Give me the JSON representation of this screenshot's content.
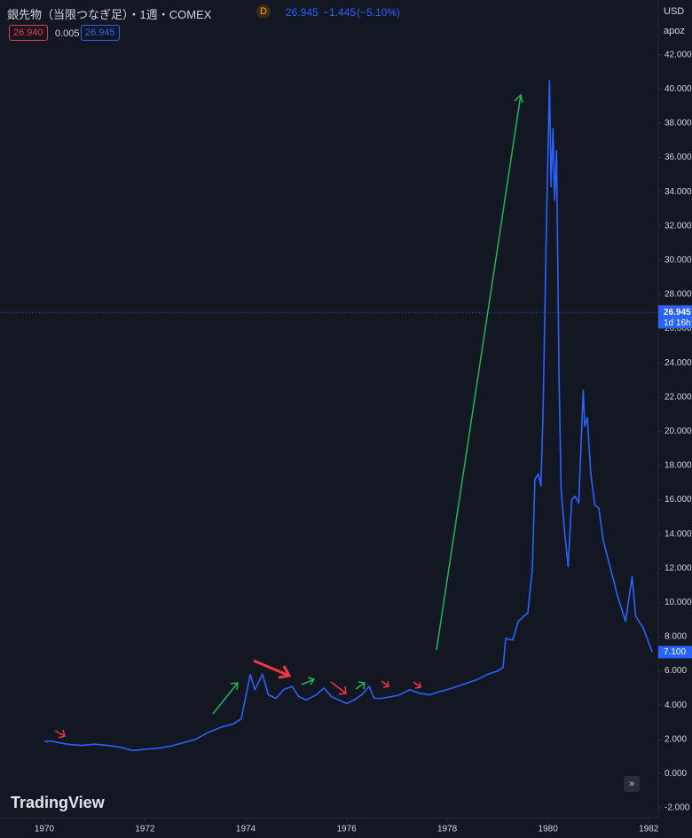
{
  "header": {
    "title": "銀先物（当限つなぎ足）・1週・COMEX",
    "badge": "D",
    "last": "26.945",
    "change": "−1.445",
    "change_pct": "(−5.10%)",
    "sell": "26.940",
    "spread": "0.005",
    "buy": "26.945",
    "currency": "USD",
    "menu": "apoz",
    "brand": "TradingView"
  },
  "price_scale": {
    "current": 26.945,
    "current_label": "26.945",
    "countdown": "1d 16h",
    "last_label": "7.100"
  },
  "chart_data": {
    "type": "line",
    "color": "#2962ff",
    "grid": false,
    "x": [
      1970.0,
      1970.15,
      1970.3,
      1970.5,
      1970.75,
      1971.0,
      1971.25,
      1971.5,
      1971.75,
      1972.0,
      1972.25,
      1972.5,
      1972.75,
      1973.0,
      1973.25,
      1973.5,
      1973.75,
      1973.91,
      1974.0,
      1974.09,
      1974.18,
      1974.33,
      1974.45,
      1974.6,
      1974.75,
      1974.92,
      1975.05,
      1975.2,
      1975.4,
      1975.55,
      1975.7,
      1975.85,
      1976.0,
      1976.15,
      1976.3,
      1976.45,
      1976.55,
      1976.7,
      1976.9,
      1977.05,
      1977.25,
      1977.45,
      1977.65,
      1977.85,
      1978.0,
      1978.2,
      1978.4,
      1978.6,
      1978.8,
      1979.0,
      1979.11,
      1979.16,
      1979.3,
      1979.41,
      1979.6,
      1979.69,
      1979.74,
      1979.81,
      1979.86,
      1979.9,
      1979.97,
      1980.03,
      1980.06,
      1980.1,
      1980.13,
      1980.17,
      1980.22,
      1980.26,
      1980.33,
      1980.4,
      1980.47,
      1980.54,
      1980.61,
      1980.7,
      1980.73,
      1980.78,
      1980.85,
      1980.93,
      1981.01,
      1981.1,
      1981.24,
      1981.37,
      1981.54,
      1981.67,
      1981.74,
      1981.89,
      1982.07
    ],
    "values": [
      1.87,
      1.9,
      1.8,
      1.7,
      1.65,
      1.72,
      1.65,
      1.55,
      1.35,
      1.42,
      1.48,
      1.6,
      1.8,
      2.0,
      2.4,
      2.7,
      2.9,
      3.2,
      4.5,
      5.8,
      4.9,
      5.8,
      4.6,
      4.4,
      4.9,
      5.1,
      4.5,
      4.3,
      4.6,
      5.0,
      4.5,
      4.3,
      4.1,
      4.3,
      4.6,
      5.1,
      4.4,
      4.4,
      4.5,
      4.6,
      4.9,
      4.7,
      4.6,
      4.8,
      4.9,
      5.1,
      5.3,
      5.5,
      5.8,
      6.0,
      6.2,
      7.9,
      7.8,
      8.9,
      9.4,
      12.0,
      17.2,
      17.5,
      16.8,
      20.8,
      32.2,
      40.5,
      34.3,
      37.7,
      33.5,
      36.4,
      23.0,
      16.7,
      14.1,
      12.1,
      16.0,
      16.2,
      15.8,
      22.4,
      20.3,
      20.8,
      17.5,
      15.7,
      15.5,
      13.6,
      12.0,
      10.5,
      8.9,
      11.5,
      9.2,
      8.5,
      7.1
    ],
    "xlim": [
      1969.12,
      1982.19
    ],
    "ylim": [
      -2.57,
      45.2
    ],
    "xticks": [
      1970,
      1972,
      1974,
      1976,
      1978,
      1980,
      1982
    ],
    "yticks": [
      {
        "value": -2,
        "label": "-2.000"
      },
      {
        "value": 0,
        "label": "0.000"
      },
      {
        "value": 2,
        "label": "2.000"
      },
      {
        "value": 4,
        "label": "4.000"
      },
      {
        "value": 6,
        "label": "6.000"
      },
      {
        "value": 8,
        "label": "8.000"
      },
      {
        "value": 10,
        "label": "10.000"
      },
      {
        "value": 12,
        "label": "12.000"
      },
      {
        "value": 14,
        "label": "14.000"
      },
      {
        "value": 16,
        "label": "16.000"
      },
      {
        "value": 18,
        "label": "18.000"
      },
      {
        "value": 20,
        "label": "20.000"
      },
      {
        "value": 22,
        "label": "22.000"
      },
      {
        "value": 24,
        "label": "24.000"
      },
      {
        "value": 26,
        "label": "26.000"
      },
      {
        "value": 28,
        "label": "28.000"
      },
      {
        "value": 30,
        "label": "30.000"
      },
      {
        "value": 32,
        "label": "32.000"
      },
      {
        "value": 34,
        "label": "34.000"
      },
      {
        "value": 36,
        "label": "36.000"
      },
      {
        "value": 38,
        "label": "38.000"
      },
      {
        "value": 40,
        "label": "40.000"
      },
      {
        "value": 42,
        "label": "42.000"
      }
    ]
  }
}
